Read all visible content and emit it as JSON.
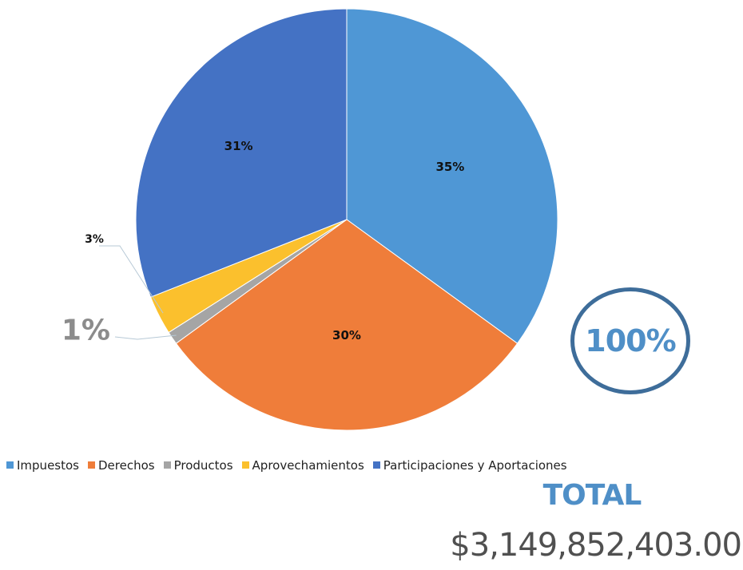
{
  "chart_data": {
    "type": "pie",
    "title": "",
    "categories": [
      "Impuestos",
      "Derechos",
      "Productos",
      "Aprovechamientos",
      "Participaciones y Aportaciones"
    ],
    "values": [
      35,
      30,
      1,
      3,
      31
    ],
    "labels": [
      "35%",
      "30%",
      "1%",
      "3%",
      "31%"
    ],
    "colors": [
      "#4f97d5",
      "#ef7d3a",
      "#a5a5a5",
      "#fbc02d",
      "#4472c4"
    ],
    "legend_position": "bottom",
    "start_angle_deg": 0,
    "direction": "clockwise"
  },
  "badge": {
    "text": "100%"
  },
  "total": {
    "label": "TOTAL",
    "value": "$3,149,852,403.00"
  }
}
